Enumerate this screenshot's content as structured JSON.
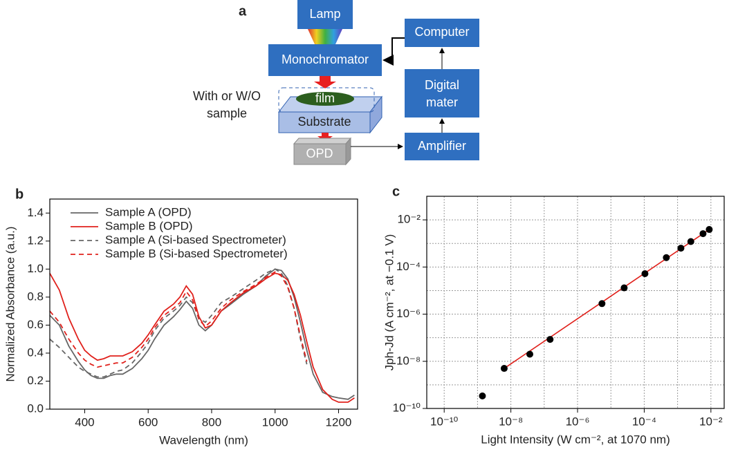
{
  "diagram": {
    "panel_label": "a",
    "lamp": "Lamp",
    "monochromator": "Monochromator",
    "computer": "Computer",
    "digital": [
      "Digital",
      "mater"
    ],
    "amplifier": "Amplifier",
    "film": "film",
    "substrate": "Substrate",
    "opd": "OPD",
    "sample_note": [
      "With or W/O",
      "sample"
    ]
  },
  "chart_data": [
    {
      "type": "line",
      "panel_label": "b",
      "xlabel": "Wavelength (nm)",
      "ylabel": "Normalized Absorbance (a.u.)",
      "legend": "upper left",
      "xlim": [
        290,
        1260
      ],
      "ylim": [
        0,
        1.5
      ],
      "xticks": [
        400,
        600,
        800,
        1000,
        1200
      ],
      "yticks": [
        {
          "value": 0,
          "label": "0.0"
        },
        0.2,
        0.4,
        0.6,
        0.8,
        {
          "value": 1,
          "label": "1.0"
        },
        1.2,
        1.4
      ],
      "x": [
        290,
        320,
        350,
        380,
        400,
        420,
        440,
        460,
        480,
        500,
        520,
        550,
        580,
        600,
        620,
        650,
        680,
        700,
        720,
        740,
        760,
        780,
        800,
        830,
        860,
        900,
        940,
        970,
        1000,
        1020,
        1040,
        1060,
        1080,
        1100,
        1120,
        1150,
        1180,
        1200,
        1230,
        1250
      ],
      "series": [
        {
          "name": "Sample A (OPD)",
          "color": "#666666",
          "dash": false,
          "values": [
            0.67,
            0.6,
            0.45,
            0.34,
            0.28,
            0.24,
            0.22,
            0.22,
            0.24,
            0.25,
            0.25,
            0.29,
            0.36,
            0.42,
            0.5,
            0.6,
            0.66,
            0.71,
            0.77,
            0.72,
            0.6,
            0.56,
            0.6,
            0.7,
            0.75,
            0.82,
            0.88,
            0.95,
            1.0,
            0.99,
            0.93,
            0.8,
            0.62,
            0.42,
            0.25,
            0.12,
            0.09,
            0.08,
            0.07,
            0.1
          ]
        },
        {
          "name": "Sample B (OPD)",
          "color": "#e0201b",
          "dash": false,
          "values": [
            0.97,
            0.85,
            0.65,
            0.5,
            0.42,
            0.38,
            0.35,
            0.36,
            0.38,
            0.38,
            0.38,
            0.41,
            0.47,
            0.53,
            0.6,
            0.7,
            0.75,
            0.8,
            0.88,
            0.82,
            0.66,
            0.58,
            0.6,
            0.7,
            0.76,
            0.83,
            0.88,
            0.93,
            0.97,
            0.96,
            0.92,
            0.82,
            0.67,
            0.48,
            0.3,
            0.14,
            0.07,
            0.05,
            0.05,
            0.08
          ]
        },
        {
          "name": "Sample A (Si-based Spectrometer)",
          "color": "#666666",
          "dash": true,
          "values": [
            0.5,
            0.44,
            0.37,
            0.3,
            0.27,
            0.25,
            0.23,
            0.23,
            0.25,
            0.27,
            0.28,
            0.33,
            0.41,
            0.47,
            0.56,
            0.65,
            0.7,
            0.74,
            0.8,
            0.76,
            0.65,
            0.62,
            0.67,
            0.76,
            0.8,
            0.86,
            0.92,
            0.97,
            1.0,
            0.97,
            0.88,
            0.72,
            0.5,
            0.32,
            null,
            null,
            null,
            null,
            null,
            null
          ]
        },
        {
          "name": "Sample B (Si-based Spectrometer)",
          "color": "#e0201b",
          "dash": true,
          "values": [
            0.7,
            0.62,
            0.5,
            0.4,
            0.35,
            0.32,
            0.3,
            0.31,
            0.32,
            0.33,
            0.33,
            0.37,
            0.44,
            0.5,
            0.58,
            0.67,
            0.72,
            0.76,
            0.84,
            0.78,
            0.64,
            0.59,
            0.63,
            0.72,
            0.78,
            0.84,
            0.89,
            0.94,
            0.98,
            0.95,
            0.87,
            0.72,
            0.52,
            0.34,
            null,
            null,
            null,
            null,
            null,
            null
          ]
        }
      ]
    },
    {
      "type": "scatter",
      "panel_label": "c",
      "xlabel": "Light Intensity (W cm⁻², at 1070 nm)",
      "ylabel": "Jph-Jd (A cm⁻², at −0.1 V)",
      "xscale": "log",
      "yscale": "log",
      "grid": true,
      "xlim": [
        3e-11,
        0.025
      ],
      "ylim": [
        1e-10,
        0.1
      ],
      "xticks": [
        {
          "value": 1e-10,
          "label": "10⁻¹⁰"
        },
        {
          "value": 1e-08,
          "label": "10⁻⁸"
        },
        {
          "value": 1e-06,
          "label": "10⁻⁶"
        },
        {
          "value": 0.0001,
          "label": "10⁻⁴"
        },
        {
          "value": 0.01,
          "label": "10⁻²"
        }
      ],
      "yticks": [
        {
          "value": 1e-10,
          "label": "10⁻¹⁰"
        },
        {
          "value": 1e-08,
          "label": "10⁻⁸"
        },
        {
          "value": 1e-06,
          "label": "10⁻⁶"
        },
        {
          "value": 0.0001,
          "label": "10⁻⁴"
        },
        {
          "value": 0.01,
          "label": "10⁻²"
        }
      ],
      "xminor": [
        1e-09,
        1e-07,
        1e-05,
        0.001
      ],
      "yminor": [
        1e-09,
        1e-07,
        1e-05,
        0.001
      ],
      "points": {
        "color": "#000000",
        "x": [
          1.4e-09,
          6.3e-09,
          3.7e-08,
          1.5e-07,
          5.4e-06,
          2.5e-05,
          0.000105,
          0.00046,
          0.00126,
          0.0025,
          0.0058,
          0.0089
        ],
        "y": [
          3.4e-10,
          5e-09,
          2e-08,
          8.5e-08,
          2.8e-06,
          1.3e-05,
          5.2e-05,
          0.00025,
          0.00063,
          0.0012,
          0.0026,
          0.0039
        ]
      },
      "fit": {
        "color": "#e0201b",
        "x": [
          6.3e-09,
          0.0089
        ],
        "y": [
          5e-09,
          0.0039
        ]
      }
    }
  ]
}
